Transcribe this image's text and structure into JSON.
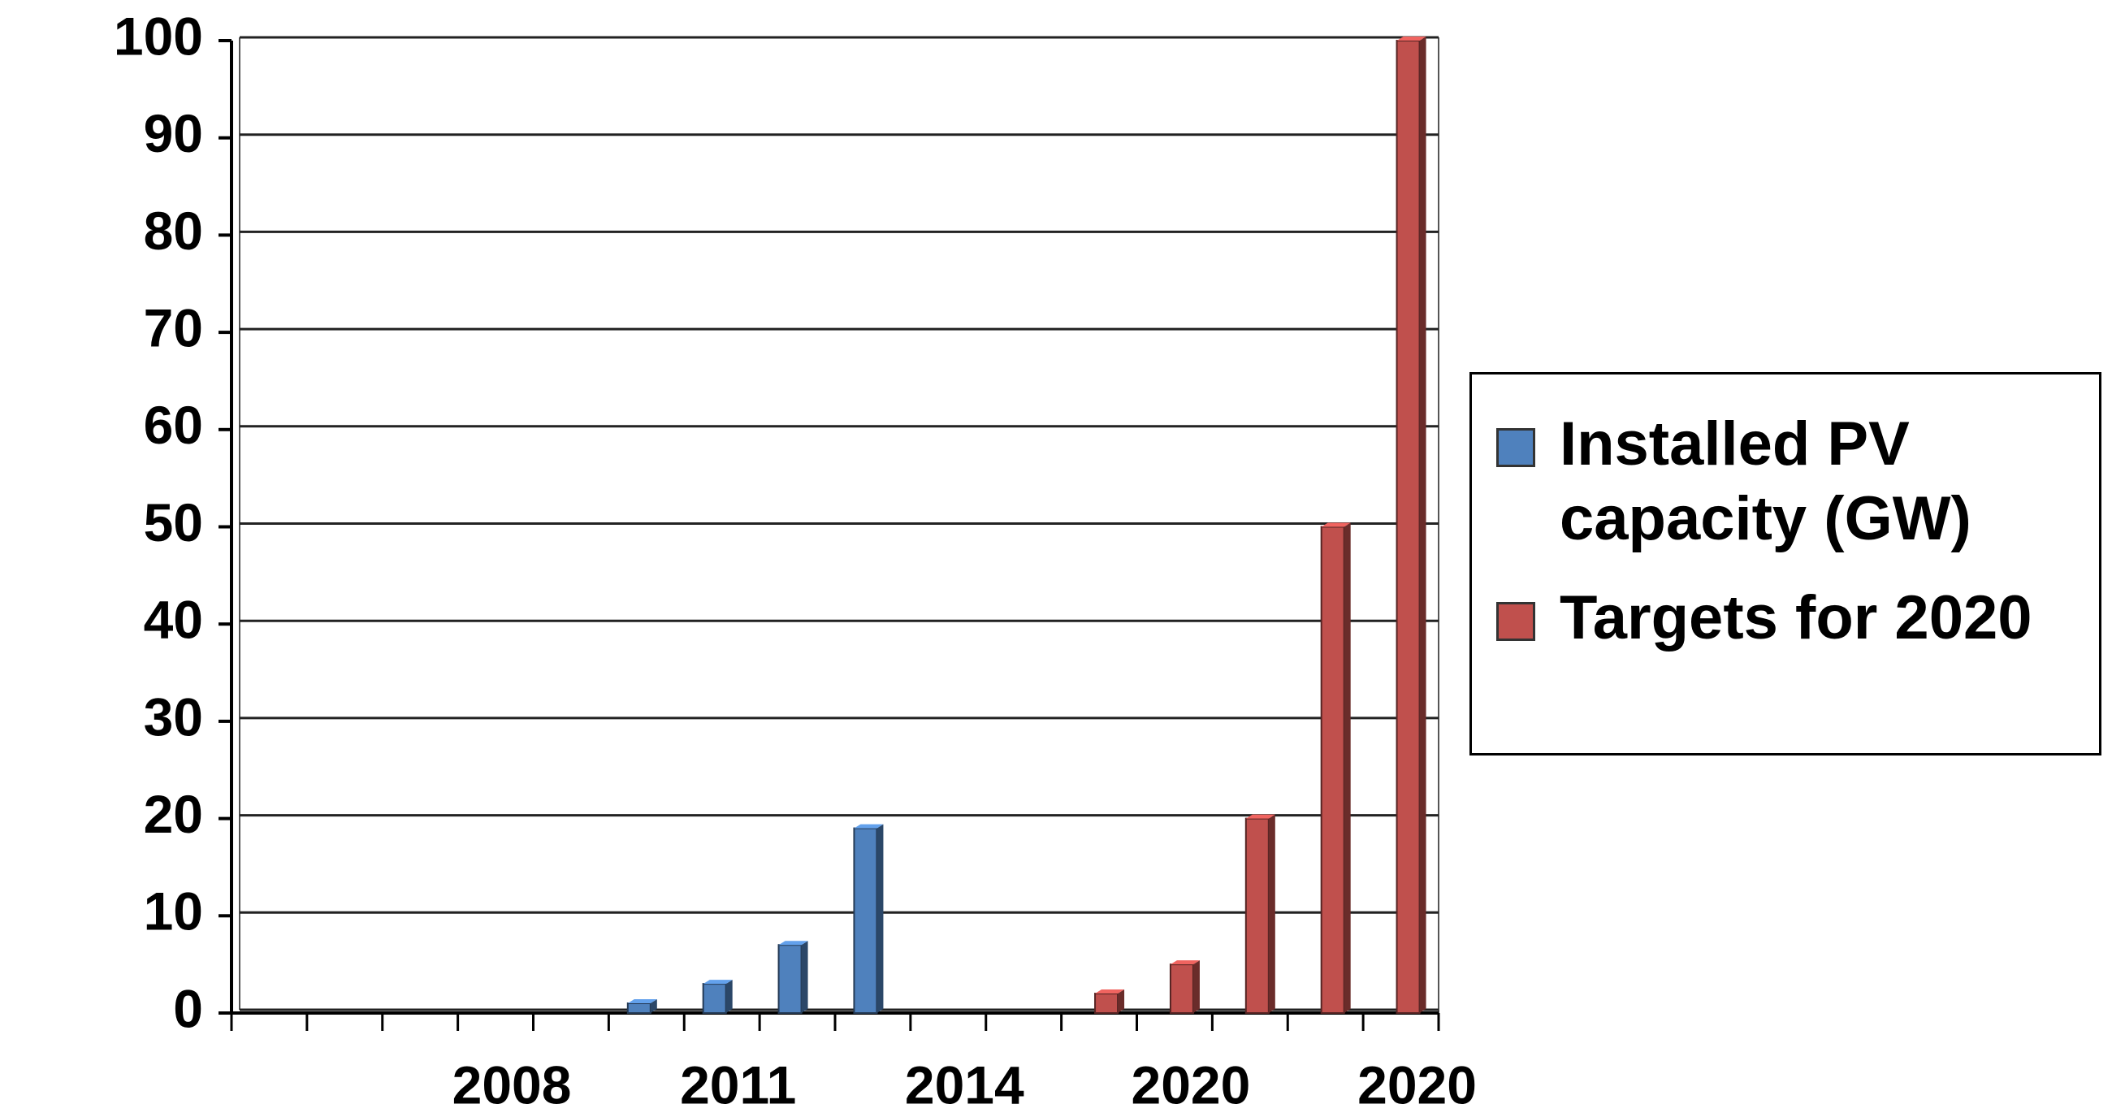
{
  "chart_data": {
    "type": "bar",
    "categories": [
      null,
      null,
      null,
      "2008",
      null,
      null,
      "2011",
      null,
      null,
      "2014",
      null,
      null,
      "2020",
      null,
      null,
      "2020"
    ],
    "series": [
      {
        "name": "Installed PV capacity (GW)",
        "color": "#4f81bd",
        "values": [
          null,
          null,
          null,
          null,
          null,
          1,
          3,
          7,
          19,
          null,
          null,
          null,
          null,
          null,
          null,
          null
        ]
      },
      {
        "name": "Targets for 2020",
        "color": "#c0504d",
        "values": [
          null,
          null,
          null,
          null,
          null,
          null,
          null,
          null,
          null,
          null,
          null,
          2,
          5,
          20,
          50,
          100
        ]
      }
    ],
    "ylim": [
      0,
      100
    ],
    "yticks": [
      0,
      10,
      20,
      30,
      40,
      50,
      60,
      70,
      80,
      90,
      100
    ],
    "grid": true,
    "legend": "right"
  }
}
